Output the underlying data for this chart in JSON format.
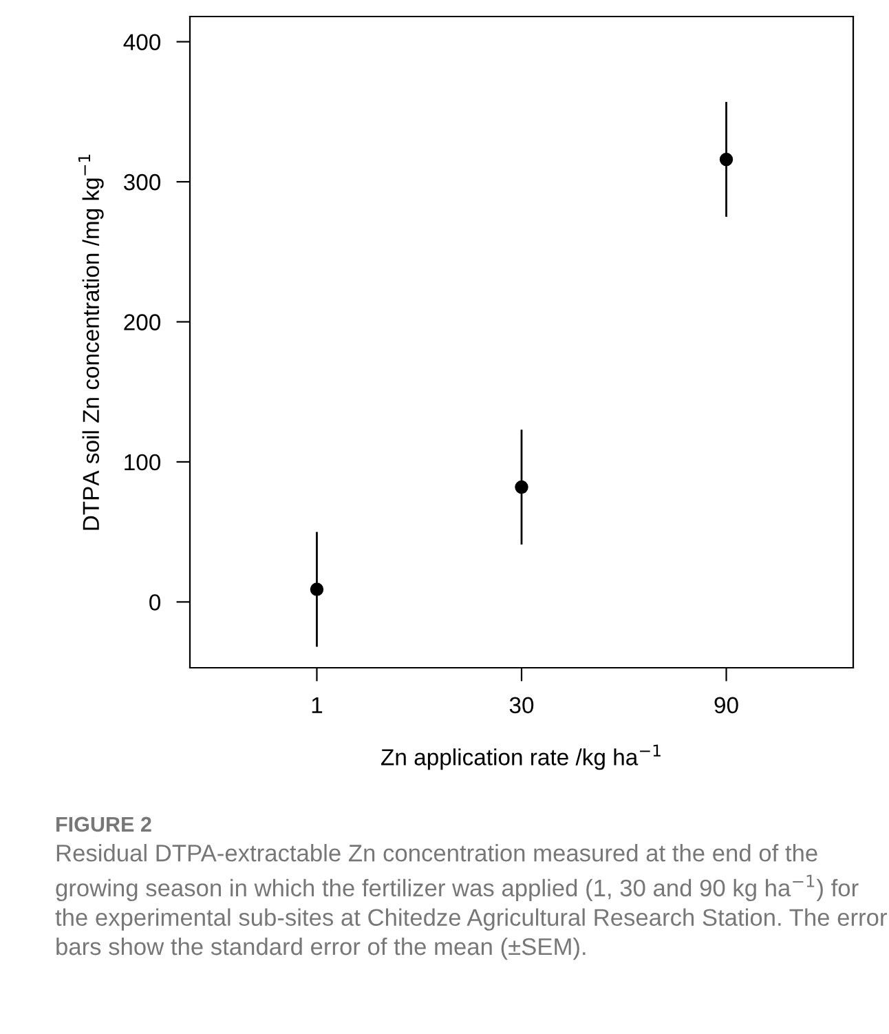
{
  "chart_data": {
    "type": "scatter",
    "categories": [
      "1",
      "30",
      "90"
    ],
    "values": [
      9,
      82,
      316
    ],
    "errors": [
      41,
      41,
      41
    ],
    "color": "#000000",
    "marker": "circle",
    "xlabel": "Zn application rate /kg ha$^{−1}$",
    "ylabel": "DTPA soil Zn concentration /mg kg$^{−1}$",
    "ylim": [
      -47,
      418
    ],
    "yticks": [
      0,
      100,
      200,
      300,
      400
    ],
    "grid": false,
    "title": "FIGURE 2",
    "annotations": [
      "Residual DTPA-extractable Zn concentration measured at the end of the growing season in which the fertilizer was applied (1, 30 and 90 kg ha$^{−1}$) for the experimental sub-sites at Chitedze Agricultural Research Station. The error bars show the standard error of the mean (±SEM)."
    ]
  }
}
